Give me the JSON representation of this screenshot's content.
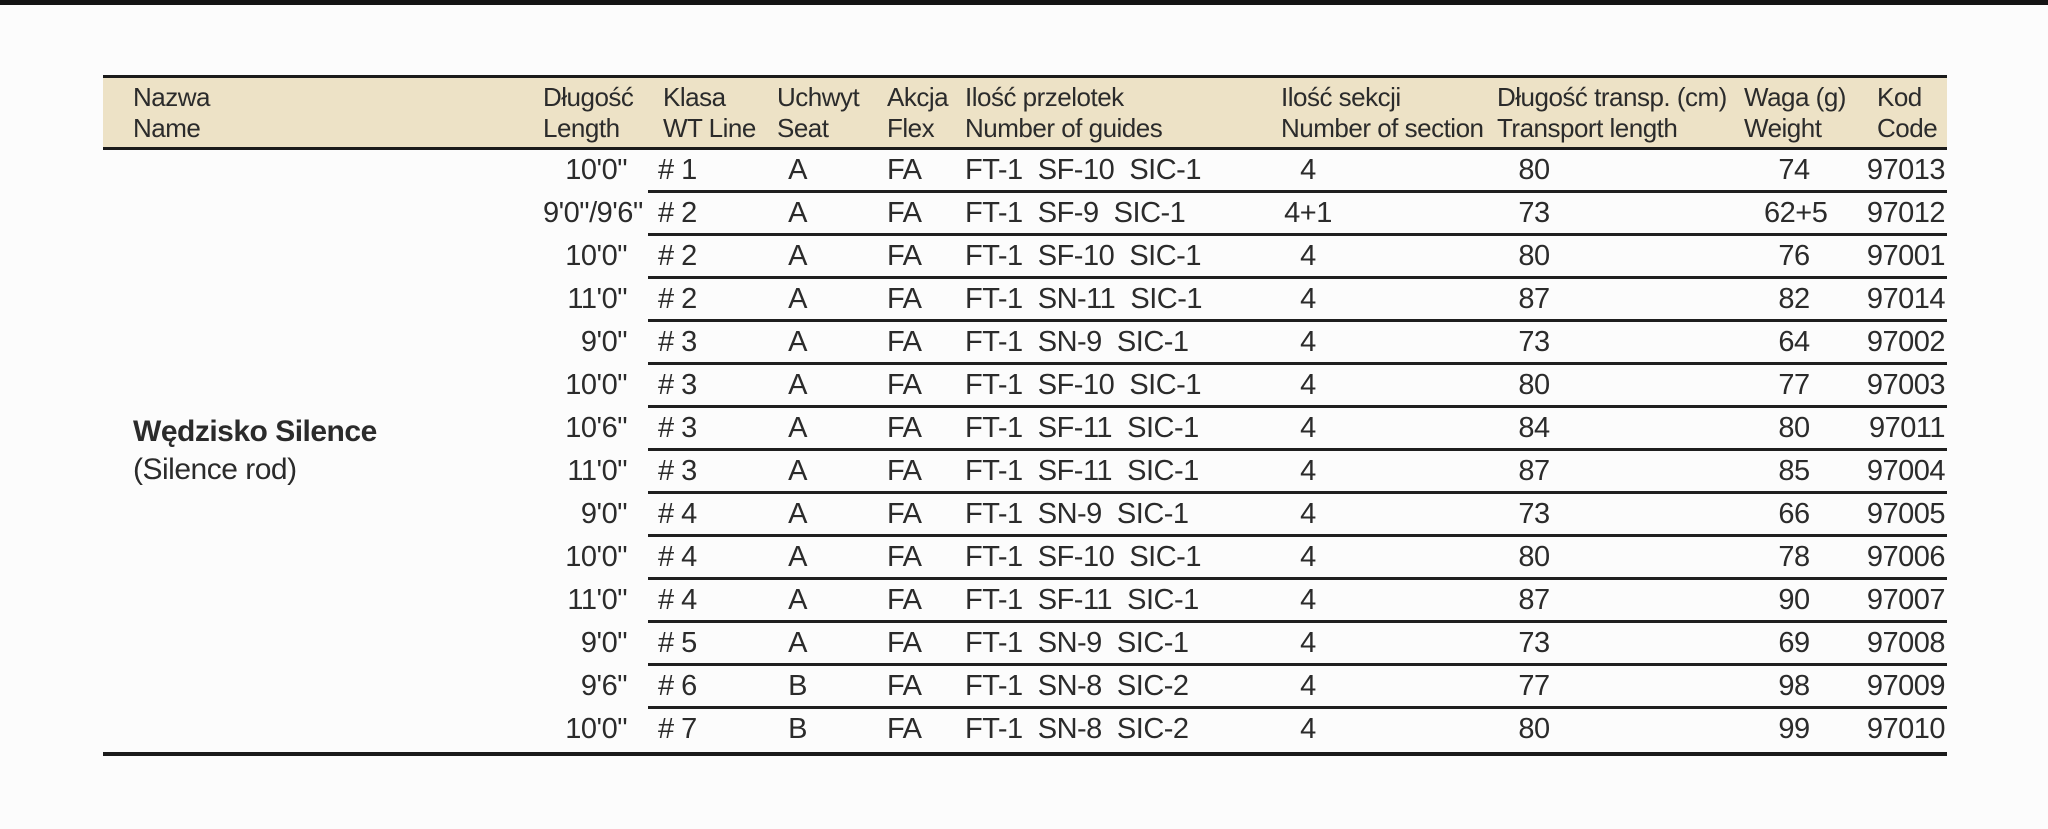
{
  "page": {
    "top_bar_color": "#141414",
    "background_color": "#fcfcfc"
  },
  "table": {
    "header_bg": "#ede2c6",
    "line_color": "#1b1b1b",
    "columns": [
      {
        "id": "name",
        "pl": "Nazwa",
        "en": "Name"
      },
      {
        "id": "length",
        "pl": "Długość",
        "en": "Length"
      },
      {
        "id": "wt_line",
        "pl": "Klasa",
        "en": "WT Line"
      },
      {
        "id": "seat",
        "pl": "Uchwyt",
        "en": "Seat"
      },
      {
        "id": "flex",
        "pl": "Akcja",
        "en": "Flex"
      },
      {
        "id": "guides",
        "pl": "Ilość przelotek",
        "en": "Number of guides"
      },
      {
        "id": "sections",
        "pl": "Ilość sekcji",
        "en": "Number of section"
      },
      {
        "id": "transport",
        "pl": "Długość transp. (cm)",
        "en": "Transport length"
      },
      {
        "id": "weight",
        "pl": "Waga (g)",
        "en": "Weight"
      },
      {
        "id": "code",
        "pl": "Kod",
        "en": "Code"
      }
    ],
    "product": {
      "name_pl": "Wędzisko Silence",
      "name_en": "(Silence rod)"
    },
    "rows": [
      {
        "length": "10'0\"",
        "wt_line": "# 1",
        "seat": "A",
        "flex": "FA",
        "guides": "FT-1  SF-10  SIC-1",
        "sections": "4",
        "transport": "80",
        "weight": "74",
        "code": "97013"
      },
      {
        "length": "9'0\"/9'6\"",
        "wt_line": "# 2",
        "seat": "A",
        "flex": "FA",
        "guides": "FT-1  SF-9  SIC-1",
        "sections": "4+1",
        "transport": "73",
        "weight": "62+5",
        "code": "97012"
      },
      {
        "length": "10'0\"",
        "wt_line": "# 2",
        "seat": "A",
        "flex": "FA",
        "guides": "FT-1  SF-10  SIC-1",
        "sections": "4",
        "transport": "80",
        "weight": "76",
        "code": "97001"
      },
      {
        "length": "11'0\"",
        "wt_line": "# 2",
        "seat": "A",
        "flex": "FA",
        "guides": "FT-1  SN-11  SIC-1",
        "sections": "4",
        "transport": "87",
        "weight": "82",
        "code": "97014"
      },
      {
        "length": "9'0\"",
        "wt_line": "# 3",
        "seat": "A",
        "flex": "FA",
        "guides": "FT-1  SN-9  SIC-1",
        "sections": "4",
        "transport": "73",
        "weight": "64",
        "code": "97002"
      },
      {
        "length": "10'0\"",
        "wt_line": "# 3",
        "seat": "A",
        "flex": "FA",
        "guides": "FT-1  SF-10  SIC-1",
        "sections": "4",
        "transport": "80",
        "weight": "77",
        "code": "97003"
      },
      {
        "length": "10'6\"",
        "wt_line": "# 3",
        "seat": "A",
        "flex": "FA",
        "guides": "FT-1  SF-11  SIC-1",
        "sections": "4",
        "transport": "84",
        "weight": "80",
        "code": "97011"
      },
      {
        "length": "11'0\"",
        "wt_line": "# 3",
        "seat": "A",
        "flex": "FA",
        "guides": "FT-1  SF-11  SIC-1",
        "sections": "4",
        "transport": "87",
        "weight": "85",
        "code": "97004"
      },
      {
        "length": "9'0\"",
        "wt_line": "# 4",
        "seat": "A",
        "flex": "FA",
        "guides": "FT-1  SN-9  SIC-1",
        "sections": "4",
        "transport": "73",
        "weight": "66",
        "code": "97005"
      },
      {
        "length": "10'0\"",
        "wt_line": "# 4",
        "seat": "A",
        "flex": "FA",
        "guides": "FT-1  SF-10  SIC-1",
        "sections": "4",
        "transport": "80",
        "weight": "78",
        "code": "97006"
      },
      {
        "length": "11'0\"",
        "wt_line": "# 4",
        "seat": "A",
        "flex": "FA",
        "guides": "FT-1  SF-11  SIC-1",
        "sections": "4",
        "transport": "87",
        "weight": "90",
        "code": "97007"
      },
      {
        "length": "9'0\"",
        "wt_line": "# 5",
        "seat": "A",
        "flex": "FA",
        "guides": "FT-1  SN-9  SIC-1",
        "sections": "4",
        "transport": "73",
        "weight": "69",
        "code": "97008"
      },
      {
        "length": "9'6\"",
        "wt_line": "# 6",
        "seat": "B",
        "flex": "FA",
        "guides": "FT-1  SN-8  SIC-2",
        "sections": "4",
        "transport": "77",
        "weight": "98",
        "code": "97009"
      },
      {
        "length": "10'0\"",
        "wt_line": "# 7",
        "seat": "B",
        "flex": "FA",
        "guides": "FT-1  SN-8  SIC-2",
        "sections": "4",
        "transport": "80",
        "weight": "99",
        "code": "97010"
      }
    ]
  }
}
